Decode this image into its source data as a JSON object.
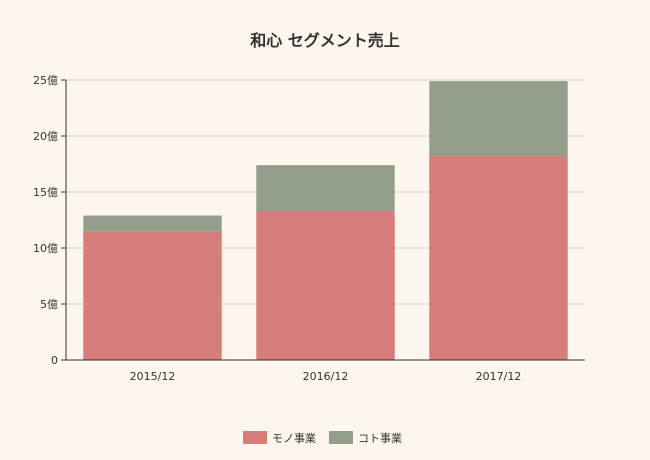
{
  "chart_data": {
    "type": "bar",
    "stacked": true,
    "title": "和心 セグメント売上",
    "xlabel": "",
    "ylabel": "",
    "categories": [
      "2015/12",
      "2016/12",
      "2017/12"
    ],
    "series": [
      {
        "name": "モノ事業",
        "values": [
          11.5,
          13.3,
          18.2
        ],
        "color": "#d67c7a"
      },
      {
        "name": "コト事業",
        "values": [
          1.4,
          4.1,
          6.7
        ],
        "color": "#939e8b"
      }
    ],
    "ylim": [
      0,
      25
    ],
    "yticks": [
      0,
      5,
      10,
      15,
      20,
      25
    ],
    "ytick_labels": [
      "0",
      "5億",
      "10億",
      "15億",
      "20億",
      "25億"
    ],
    "grid": true,
    "legend_position": "bottom"
  }
}
